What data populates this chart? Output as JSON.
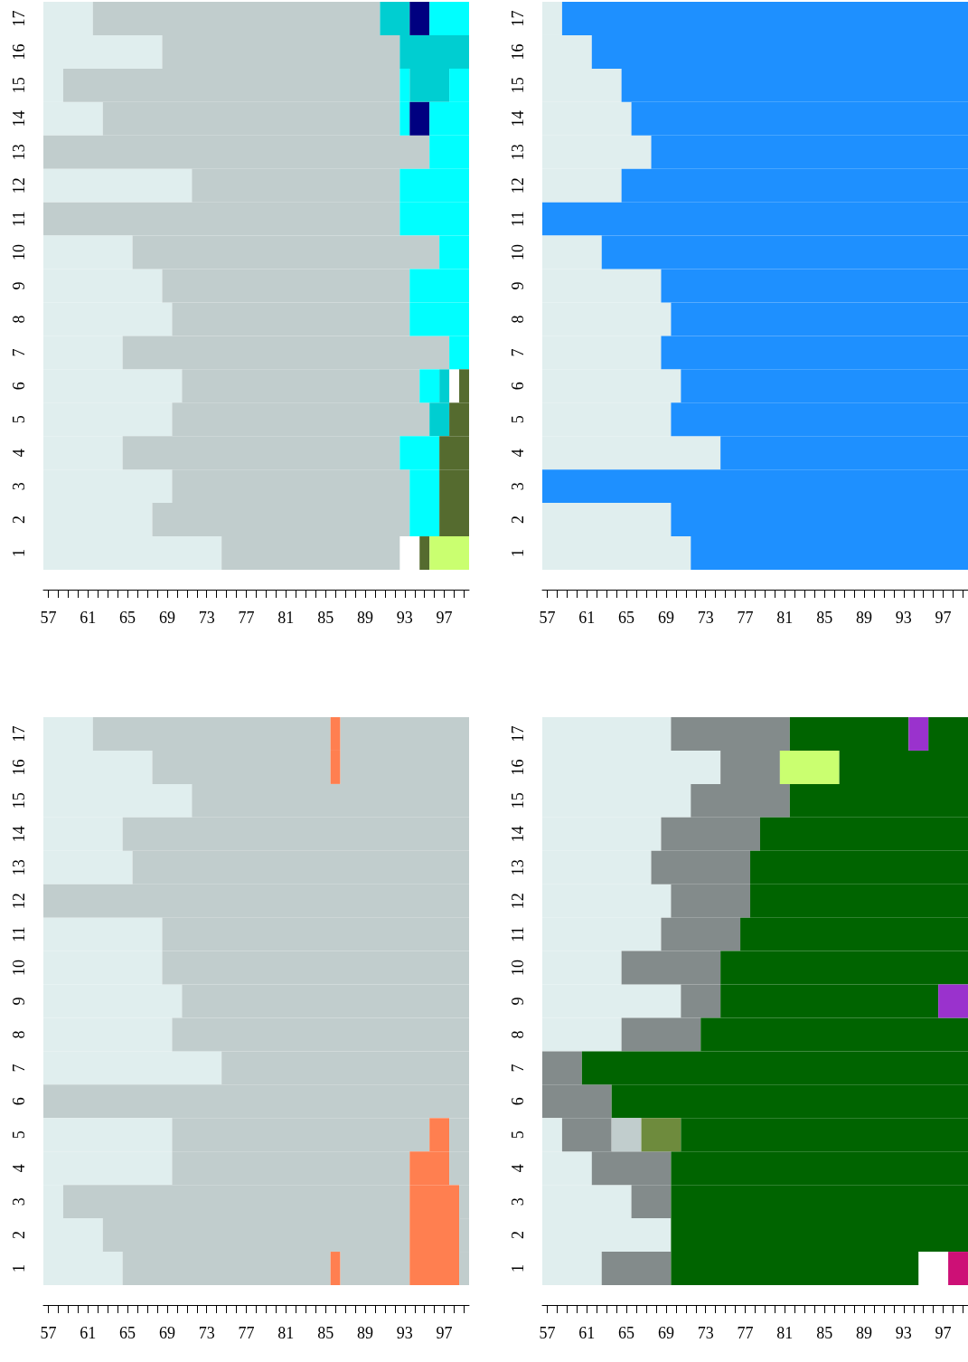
{
  "chart_data": [
    {
      "type": "bar",
      "orientation": "horizontal",
      "categories": [
        "17",
        "16",
        "15",
        "14",
        "13",
        "12",
        "11",
        "10",
        "9",
        "8",
        "7",
        "6",
        "5",
        "4",
        "3",
        "2",
        "1"
      ],
      "xlim": [
        56.5,
        99.5
      ],
      "xticks": [
        57,
        {
          "value": 58,
          "label": null
        },
        {
          "value": 59,
          "label": null
        },
        {
          "value": 60,
          "label": null
        },
        61,
        {
          "value": 62,
          "label": null
        },
        {
          "value": 63,
          "label": null
        },
        {
          "value": 64,
          "label": null
        },
        65,
        {
          "value": 66,
          "label": null
        },
        {
          "value": 67,
          "label": null
        },
        {
          "value": 68,
          "label": null
        },
        69,
        {
          "value": 70,
          "label": null
        },
        {
          "value": 71,
          "label": null
        },
        {
          "value": 72,
          "label": null
        },
        73,
        {
          "value": 74,
          "label": null
        },
        {
          "value": 75,
          "label": null
        },
        {
          "value": 76,
          "label": null
        },
        77,
        {
          "value": 78,
          "label": null
        },
        {
          "value": 79,
          "label": null
        },
        {
          "value": 80,
          "label": null
        },
        81,
        {
          "value": 82,
          "label": null
        },
        {
          "value": 83,
          "label": null
        },
        {
          "value": 84,
          "label": null
        },
        85,
        {
          "value": 86,
          "label": null
        },
        {
          "value": 87,
          "label": null
        },
        {
          "value": 88,
          "label": null
        },
        89,
        {
          "value": 90,
          "label": null
        },
        {
          "value": 91,
          "label": null
        },
        {
          "value": 92,
          "label": null
        },
        93,
        {
          "value": 94,
          "label": null
        },
        {
          "value": 95,
          "label": null
        },
        {
          "value": 96,
          "label": null
        },
        97,
        {
          "value": 98,
          "label": null
        },
        {
          "value": 99,
          "label": null
        }
      ],
      "series": [
        {
          "base": [
            56.5,
            56.5,
            56.5,
            56.5,
            56.5,
            56.5,
            56.5,
            56.5,
            56.5,
            56.5,
            56.5,
            56.5,
            56.5,
            56.5,
            56.5,
            56.5,
            56.5
          ],
          "values": [
            5,
            12,
            2,
            6,
            39,
            15,
            36,
            9,
            12,
            13,
            8,
            14,
            13,
            8,
            13,
            11,
            18
          ],
          "colors": [
            "#e0eeee",
            "#e0eeee",
            "#e0eeee",
            "#e0eeee",
            "#c1cdcd",
            "#e0eeee",
            "#c1cdcd",
            "#e0eeee",
            "#e0eeee",
            "#e0eeee",
            "#e0eeee",
            "#e0eeee",
            "#e0eeee",
            "#e0eeee",
            "#e0eeee",
            "#e0eeee",
            "#e0eeee"
          ]
        },
        {
          "base": [
            61.5,
            68.5,
            58.5,
            62.5,
            95.5,
            71.5,
            92.5,
            65.5,
            68.5,
            69.5,
            64.5,
            70.5,
            69.5,
            64.5,
            69.5,
            67.5,
            74.5
          ],
          "values": [
            29,
            24,
            34,
            30,
            4,
            21,
            7,
            31,
            25,
            24,
            33,
            24,
            26,
            28,
            24,
            26,
            18
          ],
          "colors": [
            "#c1cdcd",
            "#c1cdcd",
            "#c1cdcd",
            "#c1cdcd",
            "#00ffff",
            "#c1cdcd",
            "#00ffff",
            "#c1cdcd",
            "#c1cdcd",
            "#c1cdcd",
            "#c1cdcd",
            "#c1cdcd",
            "#c1cdcd",
            "#c1cdcd",
            "#c1cdcd",
            "#c1cdcd",
            "#c1cdcd"
          ]
        },
        {
          "base": [
            90.5,
            92.5,
            92.5,
            92.5,
            null,
            92.5,
            null,
            96.5,
            93.5,
            93.5,
            97.5,
            94.5,
            95.5,
            92.5,
            93.5,
            93.5,
            null
          ],
          "values": [
            3,
            7,
            1,
            1,
            null,
            7,
            null,
            3,
            6,
            6,
            2,
            2,
            2,
            4,
            3,
            3,
            null
          ],
          "colors": [
            "#00ced1",
            "#00ced1",
            "#00ffff",
            "#00ffff",
            null,
            "#00ffff",
            null,
            "#00ffff",
            "#00ffff",
            "#00ffff",
            "#00ffff",
            "#00ffff",
            "#00ced1",
            "#00ffff",
            "#00ffff",
            "#00ffff",
            null
          ]
        },
        {
          "base": [
            93.5,
            null,
            93.5,
            93.5,
            null,
            null,
            null,
            null,
            null,
            null,
            null,
            96.5,
            97.5,
            96.5,
            96.5,
            96.5,
            94.5
          ],
          "values": [
            2,
            null,
            4,
            2,
            null,
            null,
            null,
            null,
            null,
            null,
            null,
            1,
            2,
            3,
            3,
            3,
            1
          ],
          "colors": [
            "#000080",
            null,
            "#00ced1",
            "#000080",
            null,
            null,
            null,
            null,
            null,
            null,
            null,
            "#00ced1",
            "#556b2f",
            "#556b2f",
            "#556b2f",
            "#556b2f",
            "#556b2f"
          ]
        },
        {
          "base": [
            95.5,
            null,
            97.5,
            95.5,
            null,
            null,
            null,
            null,
            null,
            null,
            null,
            null,
            null,
            null,
            null,
            null,
            95.5
          ],
          "values": [
            4,
            null,
            2,
            4,
            null,
            null,
            null,
            null,
            null,
            null,
            null,
            null,
            null,
            null,
            null,
            null,
            4
          ],
          "colors": [
            "#00ffff",
            null,
            "#00ffff",
            "#00ffff",
            null,
            null,
            null,
            null,
            null,
            null,
            null,
            null,
            null,
            null,
            null,
            null,
            "#caff70"
          ]
        },
        {
          "base": [
            null,
            null,
            null,
            null,
            null,
            null,
            null,
            null,
            null,
            null,
            null,
            98.5,
            null,
            null,
            null,
            null,
            null
          ],
          "values": [
            null,
            null,
            null,
            null,
            null,
            null,
            null,
            null,
            null,
            null,
            null,
            1,
            null,
            null,
            null,
            null,
            null
          ],
          "colors": [
            null,
            null,
            null,
            null,
            null,
            null,
            null,
            null,
            null,
            null,
            null,
            "#556b2f",
            null,
            null,
            null,
            null,
            null
          ]
        }
      ]
    },
    {
      "type": "bar",
      "orientation": "horizontal",
      "categories": [
        "17",
        "16",
        "15",
        "14",
        "13",
        "12",
        "11",
        "10",
        "9",
        "8",
        "7",
        "6",
        "5",
        "4",
        "3",
        "2",
        "1"
      ],
      "xlim": [
        56.5,
        99.5
      ],
      "xticks": [
        57,
        {
          "value": 58,
          "label": null
        },
        {
          "value": 59,
          "label": null
        },
        {
          "value": 60,
          "label": null
        },
        61,
        {
          "value": 62,
          "label": null
        },
        {
          "value": 63,
          "label": null
        },
        {
          "value": 64,
          "label": null
        },
        65,
        {
          "value": 66,
          "label": null
        },
        {
          "value": 67,
          "label": null
        },
        {
          "value": 68,
          "label": null
        },
        69,
        {
          "value": 70,
          "label": null
        },
        {
          "value": 71,
          "label": null
        },
        {
          "value": 72,
          "label": null
        },
        73,
        {
          "value": 74,
          "label": null
        },
        {
          "value": 75,
          "label": null
        },
        {
          "value": 76,
          "label": null
        },
        77,
        {
          "value": 78,
          "label": null
        },
        {
          "value": 79,
          "label": null
        },
        {
          "value": 80,
          "label": null
        },
        81,
        {
          "value": 82,
          "label": null
        },
        {
          "value": 83,
          "label": null
        },
        {
          "value": 84,
          "label": null
        },
        85,
        {
          "value": 86,
          "label": null
        },
        {
          "value": 87,
          "label": null
        },
        {
          "value": 88,
          "label": null
        },
        89,
        {
          "value": 90,
          "label": null
        },
        {
          "value": 91,
          "label": null
        },
        {
          "value": 92,
          "label": null
        },
        93,
        {
          "value": 94,
          "label": null
        },
        {
          "value": 95,
          "label": null
        },
        {
          "value": 96,
          "label": null
        },
        97,
        {
          "value": 98,
          "label": null
        },
        {
          "value": 99,
          "label": null
        }
      ],
      "series": [
        {
          "base": [
            56.5,
            56.5,
            56.5,
            56.5,
            56.5,
            56.5,
            56.5,
            56.5,
            56.5,
            56.5,
            56.5,
            56.5,
            56.5,
            56.5,
            56.5,
            56.5,
            56.5
          ],
          "values": [
            2,
            5,
            8,
            9,
            11,
            8,
            43,
            6,
            12,
            13,
            12,
            14,
            13,
            18,
            43,
            13,
            15
          ],
          "colors": [
            "#e0eeee",
            "#e0eeee",
            "#e0eeee",
            "#e0eeee",
            "#e0eeee",
            "#e0eeee",
            "#1e90ff",
            "#e0eeee",
            "#e0eeee",
            "#e0eeee",
            "#e0eeee",
            "#e0eeee",
            "#e0eeee",
            "#e0eeee",
            "#1e90ff",
            "#e0eeee",
            "#e0eeee"
          ]
        },
        {
          "base": [
            58.5,
            61.5,
            64.5,
            65.5,
            67.5,
            64.5,
            null,
            62.5,
            68.5,
            69.5,
            68.5,
            70.5,
            69.5,
            74.5,
            null,
            69.5,
            71.5
          ],
          "values": [
            41,
            38,
            35,
            34,
            32,
            35,
            null,
            37,
            31,
            30,
            31,
            29,
            30,
            25,
            null,
            30,
            28
          ],
          "colors": [
            "#1e90ff",
            "#1e90ff",
            "#1e90ff",
            "#1e90ff",
            "#1e90ff",
            "#1e90ff",
            null,
            "#1e90ff",
            "#1e90ff",
            "#1e90ff",
            "#1e90ff",
            "#1e90ff",
            "#1e90ff",
            "#1e90ff",
            null,
            "#1e90ff",
            "#1e90ff"
          ]
        }
      ]
    },
    {
      "type": "bar",
      "orientation": "horizontal",
      "categories": [
        "17",
        "16",
        "15",
        "14",
        "13",
        "12",
        "11",
        "10",
        "9",
        "8",
        "7",
        "6",
        "5",
        "4",
        "3",
        "2",
        "1"
      ],
      "xlim": [
        56.5,
        99.5
      ],
      "xticks": [
        57,
        {
          "value": 58,
          "label": null
        },
        {
          "value": 59,
          "label": null
        },
        {
          "value": 60,
          "label": null
        },
        61,
        {
          "value": 62,
          "label": null
        },
        {
          "value": 63,
          "label": null
        },
        {
          "value": 64,
          "label": null
        },
        65,
        {
          "value": 66,
          "label": null
        },
        {
          "value": 67,
          "label": null
        },
        {
          "value": 68,
          "label": null
        },
        69,
        {
          "value": 70,
          "label": null
        },
        {
          "value": 71,
          "label": null
        },
        {
          "value": 72,
          "label": null
        },
        73,
        {
          "value": 74,
          "label": null
        },
        {
          "value": 75,
          "label": null
        },
        {
          "value": 76,
          "label": null
        },
        77,
        {
          "value": 78,
          "label": null
        },
        {
          "value": 79,
          "label": null
        },
        {
          "value": 80,
          "label": null
        },
        81,
        {
          "value": 82,
          "label": null
        },
        {
          "value": 83,
          "label": null
        },
        {
          "value": 84,
          "label": null
        },
        85,
        {
          "value": 86,
          "label": null
        },
        {
          "value": 87,
          "label": null
        },
        {
          "value": 88,
          "label": null
        },
        89,
        {
          "value": 90,
          "label": null
        },
        {
          "value": 91,
          "label": null
        },
        {
          "value": 92,
          "label": null
        },
        93,
        {
          "value": 94,
          "label": null
        },
        {
          "value": 95,
          "label": null
        },
        {
          "value": 96,
          "label": null
        },
        97,
        {
          "value": 98,
          "label": null
        },
        {
          "value": 99,
          "label": null
        }
      ],
      "series": [
        {
          "base": [
            56.5,
            56.5,
            56.5,
            56.5,
            56.5,
            56.5,
            56.5,
            56.5,
            56.5,
            56.5,
            56.5,
            56.5,
            56.5,
            56.5,
            56.5,
            56.5,
            56.5
          ],
          "values": [
            5,
            11,
            15,
            8,
            9,
            43,
            12,
            12,
            14,
            13,
            18,
            43,
            13,
            13,
            2,
            6,
            8
          ],
          "colors": [
            "#e0eeee",
            "#e0eeee",
            "#e0eeee",
            "#e0eeee",
            "#e0eeee",
            "#c1cdcd",
            "#e0eeee",
            "#e0eeee",
            "#e0eeee",
            "#e0eeee",
            "#e0eeee",
            "#c1cdcd",
            "#e0eeee",
            "#e0eeee",
            "#e0eeee",
            "#e0eeee",
            "#e0eeee"
          ]
        },
        {
          "base": [
            61.5,
            67.5,
            71.5,
            64.5,
            65.5,
            null,
            68.5,
            68.5,
            70.5,
            69.5,
            74.5,
            null,
            69.5,
            69.5,
            58.5,
            62.5,
            64.5
          ],
          "values": [
            24,
            18,
            28,
            35,
            34,
            null,
            31,
            31,
            29,
            30,
            25,
            null,
            26,
            24,
            35,
            31,
            21
          ],
          "colors": [
            "#c1cdcd",
            "#c1cdcd",
            "#c1cdcd",
            "#c1cdcd",
            "#c1cdcd",
            null,
            "#c1cdcd",
            "#c1cdcd",
            "#c1cdcd",
            "#c1cdcd",
            "#c1cdcd",
            null,
            "#c1cdcd",
            "#c1cdcd",
            "#c1cdcd",
            "#c1cdcd",
            "#c1cdcd"
          ]
        },
        {
          "base": [
            85.5,
            85.5,
            null,
            null,
            null,
            null,
            null,
            null,
            null,
            null,
            null,
            null,
            95.5,
            93.5,
            93.5,
            93.5,
            85.5
          ],
          "values": [
            1,
            1,
            null,
            null,
            null,
            null,
            null,
            null,
            null,
            null,
            null,
            null,
            2,
            4,
            5,
            5,
            1
          ],
          "colors": [
            "#ff7f50",
            "#ff7f50",
            null,
            null,
            null,
            null,
            null,
            null,
            null,
            null,
            null,
            null,
            "#ff7f50",
            "#ff7f50",
            "#ff7f50",
            "#ff7f50",
            "#ff7f50"
          ]
        },
        {
          "base": [
            86.5,
            86.5,
            null,
            null,
            null,
            null,
            null,
            null,
            null,
            null,
            null,
            null,
            97.5,
            97.5,
            98.5,
            98.5,
            86.5
          ],
          "values": [
            13,
            13,
            null,
            null,
            null,
            null,
            null,
            null,
            null,
            null,
            null,
            null,
            2,
            2,
            1,
            1,
            7
          ],
          "colors": [
            "#c1cdcd",
            "#c1cdcd",
            null,
            null,
            null,
            null,
            null,
            null,
            null,
            null,
            null,
            null,
            "#c1cdcd",
            "#c1cdcd",
            "#c1cdcd",
            "#c1cdcd",
            "#c1cdcd"
          ]
        },
        {
          "base": [
            null,
            null,
            null,
            null,
            null,
            null,
            null,
            null,
            null,
            null,
            null,
            null,
            null,
            null,
            null,
            null,
            93.5
          ],
          "values": [
            null,
            null,
            null,
            null,
            null,
            null,
            null,
            null,
            null,
            null,
            null,
            null,
            null,
            null,
            null,
            null,
            5
          ],
          "colors": [
            null,
            null,
            null,
            null,
            null,
            null,
            null,
            null,
            null,
            null,
            null,
            null,
            null,
            null,
            null,
            null,
            "#ff7f50"
          ]
        },
        {
          "base": [
            null,
            null,
            null,
            null,
            null,
            null,
            null,
            null,
            null,
            null,
            null,
            null,
            null,
            null,
            null,
            null,
            98.5
          ],
          "values": [
            null,
            null,
            null,
            null,
            null,
            null,
            null,
            null,
            null,
            null,
            null,
            null,
            null,
            null,
            null,
            null,
            1
          ],
          "colors": [
            null,
            null,
            null,
            null,
            null,
            null,
            null,
            null,
            null,
            null,
            null,
            null,
            null,
            null,
            null,
            null,
            "#c1cdcd"
          ]
        }
      ]
    },
    {
      "type": "bar",
      "orientation": "horizontal",
      "categories": [
        "17",
        "16",
        "15",
        "14",
        "13",
        "12",
        "11",
        "10",
        "9",
        "8",
        "7",
        "6",
        "5",
        "4",
        "3",
        "2",
        "1"
      ],
      "xlim": [
        56.5,
        99.5
      ],
      "xticks": [
        57,
        {
          "value": 58,
          "label": null
        },
        {
          "value": 59,
          "label": null
        },
        {
          "value": 60,
          "label": null
        },
        61,
        {
          "value": 62,
          "label": null
        },
        {
          "value": 63,
          "label": null
        },
        {
          "value": 64,
          "label": null
        },
        65,
        {
          "value": 66,
          "label": null
        },
        {
          "value": 67,
          "label": null
        },
        {
          "value": 68,
          "label": null
        },
        69,
        {
          "value": 70,
          "label": null
        },
        {
          "value": 71,
          "label": null
        },
        {
          "value": 72,
          "label": null
        },
        73,
        {
          "value": 74,
          "label": null
        },
        {
          "value": 75,
          "label": null
        },
        {
          "value": 76,
          "label": null
        },
        77,
        {
          "value": 78,
          "label": null
        },
        {
          "value": 79,
          "label": null
        },
        {
          "value": 80,
          "label": null
        },
        81,
        {
          "value": 82,
          "label": null
        },
        {
          "value": 83,
          "label": null
        },
        {
          "value": 84,
          "label": null
        },
        85,
        {
          "value": 86,
          "label": null
        },
        {
          "value": 87,
          "label": null
        },
        {
          "value": 88,
          "label": null
        },
        89,
        {
          "value": 90,
          "label": null
        },
        {
          "value": 91,
          "label": null
        },
        {
          "value": 92,
          "label": null
        },
        93,
        {
          "value": 94,
          "label": null
        },
        {
          "value": 95,
          "label": null
        },
        {
          "value": 96,
          "label": null
        },
        97,
        {
          "value": 98,
          "label": null
        },
        {
          "value": 99,
          "label": null
        }
      ],
      "series": [
        {
          "base": [
            56.5,
            56.5,
            56.5,
            56.5,
            56.5,
            56.5,
            56.5,
            56.5,
            56.5,
            56.5,
            56.5,
            56.5,
            56.5,
            56.5,
            56.5,
            56.5,
            56.5
          ],
          "values": [
            13,
            18,
            15,
            12,
            11,
            13,
            12,
            8,
            14,
            8,
            4,
            7,
            2,
            5,
            9,
            13,
            6
          ],
          "colors": [
            "#e0eeee",
            "#e0eeee",
            "#e0eeee",
            "#e0eeee",
            "#e0eeee",
            "#e0eeee",
            "#e0eeee",
            "#e0eeee",
            "#e0eeee",
            "#e0eeee",
            "#838b8b",
            "#838b8b",
            "#e0eeee",
            "#e0eeee",
            "#e0eeee",
            "#e0eeee",
            "#e0eeee"
          ]
        },
        {
          "base": [
            69.5,
            74.5,
            71.5,
            68.5,
            67.5,
            69.5,
            68.5,
            64.5,
            70.5,
            64.5,
            60.5,
            63.5,
            58.5,
            61.5,
            65.5,
            69.5,
            62.5
          ],
          "values": [
            12,
            6,
            10,
            10,
            10,
            8,
            8,
            10,
            4,
            8,
            39,
            36,
            5,
            8,
            4,
            30,
            7
          ],
          "colors": [
            "#838b8b",
            "#838b8b",
            "#838b8b",
            "#838b8b",
            "#838b8b",
            "#838b8b",
            "#838b8b",
            "#838b8b",
            "#838b8b",
            "#838b8b",
            "#006400",
            "#006400",
            "#838b8b",
            "#838b8b",
            "#838b8b",
            "#006400",
            "#838b8b"
          ]
        },
        {
          "base": [
            81.5,
            80.5,
            81.5,
            78.5,
            77.5,
            77.5,
            76.5,
            74.5,
            74.5,
            72.5,
            null,
            null,
            63.5,
            69.5,
            69.5,
            null,
            69.5
          ],
          "values": [
            12,
            6,
            18,
            21,
            22,
            22,
            23,
            25,
            22,
            27,
            null,
            null,
            3,
            30,
            30,
            null,
            25
          ],
          "colors": [
            "#006400",
            "#caff70",
            "#006400",
            "#006400",
            "#006400",
            "#006400",
            "#006400",
            "#006400",
            "#006400",
            "#006400",
            null,
            null,
            "#c1cdcd",
            "#006400",
            "#006400",
            null,
            "#006400"
          ]
        },
        {
          "base": [
            93.5,
            86.5,
            null,
            null,
            null,
            null,
            null,
            null,
            96.5,
            null,
            null,
            null,
            66.5,
            null,
            null,
            null,
            null
          ],
          "values": [
            2,
            13,
            null,
            null,
            null,
            null,
            null,
            null,
            3,
            null,
            null,
            null,
            4,
            null,
            null,
            null,
            null
          ],
          "colors": [
            "#9a32cd",
            "#006400",
            null,
            null,
            null,
            null,
            null,
            null,
            "#9a32cd",
            null,
            null,
            null,
            "#6e8b3d",
            null,
            null,
            null,
            null
          ]
        },
        {
          "base": [
            95.5,
            null,
            null,
            null,
            null,
            null,
            null,
            null,
            null,
            null,
            null,
            null,
            70.5,
            null,
            null,
            null,
            97.5
          ],
          "values": [
            4,
            null,
            null,
            null,
            null,
            null,
            null,
            null,
            null,
            null,
            null,
            null,
            29,
            null,
            null,
            null,
            2
          ],
          "colors": [
            "#006400",
            null,
            null,
            null,
            null,
            null,
            null,
            null,
            null,
            null,
            null,
            null,
            "#006400",
            null,
            null,
            null,
            "#cd1076"
          ]
        }
      ]
    }
  ]
}
